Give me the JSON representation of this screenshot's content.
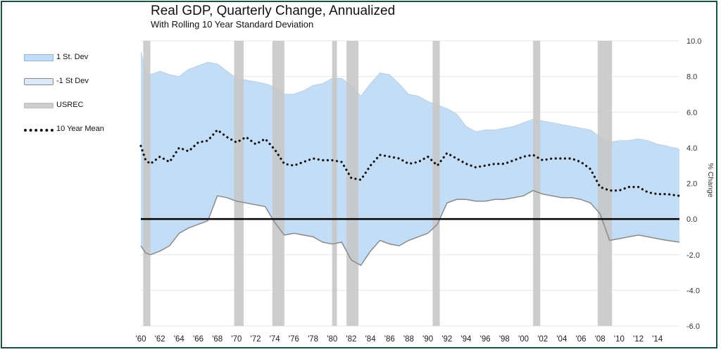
{
  "chart_data": {
    "type": "area",
    "title": "Real GDP, Quarterly Change, Annualized",
    "subtitle": "With Rolling 10 Year Standard Deviation",
    "ylabel": "% Change",
    "xlabel": "",
    "xlim": [
      1960,
      2016.3
    ],
    "ylim": [
      -6,
      10
    ],
    "y_ticks": [
      "10.0",
      "8.0",
      "6.0",
      "4.0",
      "2.0",
      "0.0",
      "-2.0",
      "-4.0",
      "-6.0"
    ],
    "x_ticks": [
      "'60",
      "'62",
      "'64",
      "'66",
      "'68",
      "'70",
      "'72",
      "'74",
      "'76",
      "'78",
      "'80",
      "'82",
      "'84",
      "'86",
      "'88",
      "'90",
      "'92",
      "'94",
      "'96",
      "'98",
      "'00",
      "'02",
      "'04",
      "'06",
      "'08",
      "'10",
      "'12",
      "'14"
    ],
    "legend": [
      "1 St. Dev",
      "-1 St Dev",
      "USREC",
      "10 Year Mean"
    ],
    "legend_position": "left",
    "grid": true,
    "colors": {
      "upper_band": "#c4ddf7",
      "lower_line": "#8a8a8a",
      "recession": "#c8c8c8",
      "mean": "#111111",
      "zero_line": "#000000"
    },
    "recessions": [
      [
        1960.25,
        1961.0
      ],
      [
        1969.75,
        1970.75
      ],
      [
        1973.75,
        1975.0
      ],
      [
        1980.0,
        1980.5
      ],
      [
        1981.5,
        1982.75
      ],
      [
        1990.5,
        1991.25
      ],
      [
        2001.0,
        2001.75
      ],
      [
        2007.75,
        2009.25
      ]
    ],
    "series": [
      {
        "name": "1 St. Dev",
        "x": [
          1960.0,
          1960.5,
          1961.0,
          1962.0,
          1963.0,
          1964.0,
          1965.0,
          1966.0,
          1967.0,
          1968.0,
          1969.0,
          1970.0,
          1971.0,
          1972.0,
          1973.0,
          1974.0,
          1975.0,
          1976.0,
          1977.0,
          1978.0,
          1979.0,
          1980.0,
          1981.0,
          1982.0,
          1983.0,
          1984.0,
          1985.0,
          1986.0,
          1987.0,
          1988.0,
          1989.0,
          1990.0,
          1991.0,
          1992.0,
          1993.0,
          1994.0,
          1995.0,
          1996.0,
          1997.0,
          1998.0,
          1999.0,
          2000.0,
          2001.0,
          2002.0,
          2003.0,
          2004.0,
          2005.0,
          2006.0,
          2007.0,
          2008.0,
          2009.0,
          2010.0,
          2011.0,
          2012.0,
          2013.0,
          2014.0,
          2015.0,
          2016.3
        ],
        "values": [
          9.4,
          8.2,
          8.1,
          8.3,
          8.1,
          8.0,
          8.4,
          8.6,
          8.8,
          8.7,
          8.3,
          7.9,
          7.8,
          7.7,
          7.6,
          7.4,
          7.0,
          7.0,
          7.2,
          7.5,
          7.6,
          7.9,
          7.9,
          7.5,
          6.9,
          7.6,
          8.2,
          8.1,
          7.6,
          7.0,
          6.9,
          6.6,
          6.4,
          6.2,
          5.9,
          5.2,
          4.9,
          5.0,
          5.0,
          5.1,
          5.2,
          5.4,
          5.6,
          5.5,
          5.4,
          5.3,
          5.2,
          5.1,
          5.0,
          4.6,
          4.3,
          4.4,
          4.4,
          4.5,
          4.4,
          4.2,
          4.1,
          3.9
        ]
      },
      {
        "name": "-1 St Dev",
        "x": [
          1960.0,
          1960.5,
          1961.0,
          1962.0,
          1963.0,
          1964.0,
          1965.0,
          1966.0,
          1967.0,
          1968.0,
          1969.0,
          1970.0,
          1971.0,
          1972.0,
          1973.0,
          1974.0,
          1975.0,
          1976.0,
          1977.0,
          1978.0,
          1979.0,
          1980.0,
          1981.0,
          1982.0,
          1983.0,
          1984.0,
          1985.0,
          1986.0,
          1987.0,
          1988.0,
          1989.0,
          1990.0,
          1991.0,
          1992.0,
          1993.0,
          1994.0,
          1995.0,
          1996.0,
          1997.0,
          1998.0,
          1999.0,
          2000.0,
          2001.0,
          2002.0,
          2003.0,
          2004.0,
          2005.0,
          2006.0,
          2007.0,
          2008.0,
          2009.0,
          2010.0,
          2011.0,
          2012.0,
          2013.0,
          2014.0,
          2015.0,
          2016.3
        ],
        "values": [
          -1.5,
          -1.9,
          -2.0,
          -1.8,
          -1.5,
          -0.8,
          -0.5,
          -0.3,
          -0.1,
          1.3,
          1.2,
          1.0,
          0.9,
          0.8,
          0.7,
          -0.2,
          -0.9,
          -0.8,
          -0.9,
          -1.0,
          -1.3,
          -1.4,
          -1.3,
          -2.3,
          -2.6,
          -1.8,
          -1.2,
          -1.4,
          -1.5,
          -1.2,
          -1.0,
          -0.8,
          -0.3,
          0.9,
          1.1,
          1.1,
          1.0,
          1.0,
          1.1,
          1.1,
          1.2,
          1.3,
          1.6,
          1.4,
          1.3,
          1.2,
          1.2,
          1.1,
          0.9,
          0.3,
          -1.2,
          -1.1,
          -1.0,
          -0.9,
          -1.0,
          -1.1,
          -1.2,
          -1.3
        ]
      },
      {
        "name": "10 Year Mean",
        "x": [
          1960.0,
          1960.5,
          1961.0,
          1962.0,
          1963.0,
          1964.0,
          1965.0,
          1966.0,
          1967.0,
          1968.0,
          1969.0,
          1970.0,
          1971.0,
          1972.0,
          1973.0,
          1974.0,
          1975.0,
          1976.0,
          1977.0,
          1978.0,
          1979.0,
          1980.0,
          1981.0,
          1982.0,
          1983.0,
          1984.0,
          1985.0,
          1986.0,
          1987.0,
          1988.0,
          1989.0,
          1990.0,
          1991.0,
          1992.0,
          1993.0,
          1994.0,
          1995.0,
          1996.0,
          1997.0,
          1998.0,
          1999.0,
          2000.0,
          2001.0,
          2002.0,
          2003.0,
          2004.0,
          2005.0,
          2006.0,
          2007.0,
          2008.0,
          2009.0,
          2010.0,
          2011.0,
          2012.0,
          2013.0,
          2014.0,
          2015.0,
          2016.3
        ],
        "values": [
          4.1,
          3.3,
          3.1,
          3.5,
          3.2,
          4.0,
          3.8,
          4.3,
          4.4,
          5.0,
          4.6,
          4.3,
          4.6,
          4.2,
          4.5,
          3.9,
          3.1,
          3.0,
          3.2,
          3.4,
          3.3,
          3.3,
          3.2,
          2.3,
          2.2,
          3.0,
          3.6,
          3.5,
          3.4,
          3.1,
          3.2,
          3.5,
          3.0,
          3.7,
          3.4,
          3.1,
          2.9,
          3.0,
          3.1,
          3.1,
          3.3,
          3.5,
          3.6,
          3.3,
          3.4,
          3.4,
          3.4,
          3.2,
          2.8,
          1.8,
          1.6,
          1.6,
          1.8,
          1.8,
          1.5,
          1.4,
          1.4,
          1.3
        ]
      }
    ]
  }
}
